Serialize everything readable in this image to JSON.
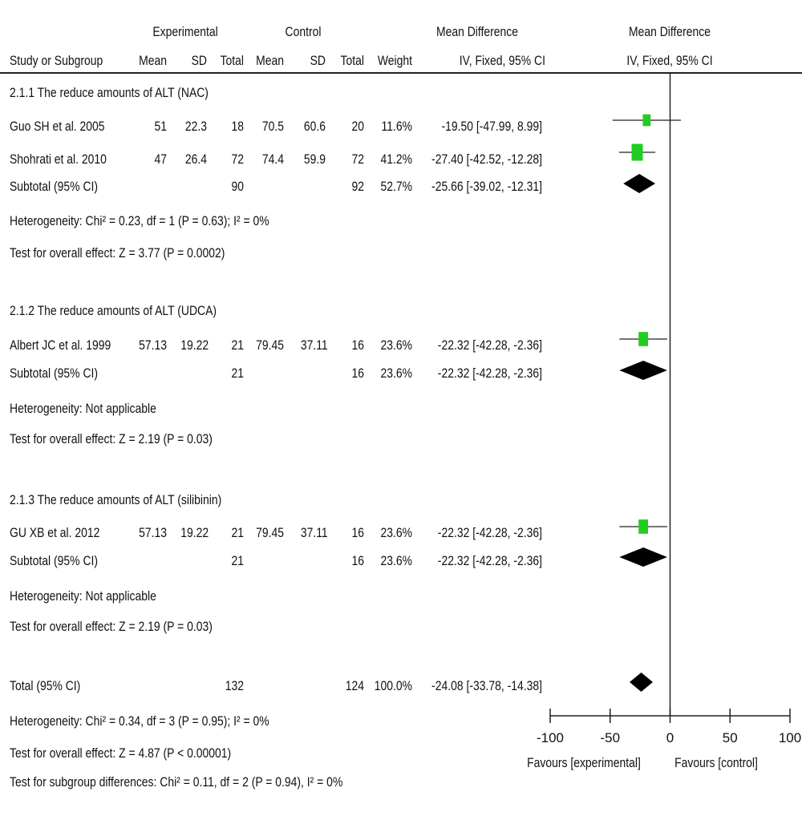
{
  "header": {
    "group_experimental": "Experimental",
    "group_control": "Control",
    "group_md": "Mean Difference",
    "group_md_plot": "Mean Difference",
    "col_study": "Study or Subgroup",
    "col_exp_mean": "Mean",
    "col_exp_sd": "SD",
    "col_exp_total": "Total",
    "col_ctl_mean": "Mean",
    "col_ctl_sd": "SD",
    "col_ctl_total": "Total",
    "col_weight": "Weight",
    "col_md": "IV, Fixed, 95% CI",
    "col_md_plot": "IV, Fixed, 95% CI"
  },
  "groups": [
    {
      "title": "2.1.1 The reduce amounts of ALT (NAC)",
      "studies": [
        {
          "name": "Guo SH et al. 2005",
          "e_mean": "51",
          "e_sd": "22.3",
          "e_total": "18",
          "c_mean": "70.5",
          "c_sd": "60.6",
          "c_total": "20",
          "weight": "11.6%",
          "md": "-19.50 [-47.99, 8.99]"
        },
        {
          "name": "Shohrati et al. 2010",
          "e_mean": "47",
          "e_sd": "26.4",
          "e_total": "72",
          "c_mean": "74.4",
          "c_sd": "59.9",
          "c_total": "72",
          "weight": "41.2%",
          "md": "-27.40 [-42.52, -12.28]"
        }
      ],
      "subtotal": {
        "label": "Subtotal (95% CI)",
        "e_total": "90",
        "c_total": "92",
        "weight": "52.7%",
        "md": "-25.66 [-39.02, -12.31]"
      },
      "heterogeneity": "Heterogeneity: Chi² = 0.23, df = 1 (P = 0.63); I² = 0%",
      "overall": "Test for overall effect: Z = 3.77 (P = 0.0002)"
    },
    {
      "title": "2.1.2 The reduce amounts of ALT (UDCA)",
      "studies": [
        {
          "name": "Albert JC et al. 1999",
          "e_mean": "57.13",
          "e_sd": "19.22",
          "e_total": "21",
          "c_mean": "79.45",
          "c_sd": "37.11",
          "c_total": "16",
          "weight": "23.6%",
          "md": "-22.32 [-42.28, -2.36]"
        }
      ],
      "subtotal": {
        "label": "Subtotal (95% CI)",
        "e_total": "21",
        "c_total": "16",
        "weight": "23.6%",
        "md": "-22.32 [-42.28, -2.36]"
      },
      "heterogeneity": "Heterogeneity: Not applicable",
      "overall": "Test for overall effect: Z = 2.19 (P = 0.03)"
    },
    {
      "title": "2.1.3 The reduce amounts of ALT (silibinin)",
      "studies": [
        {
          "name": "GU XB et al. 2012",
          "e_mean": "57.13",
          "e_sd": "19.22",
          "e_total": "21",
          "c_mean": "79.45",
          "c_sd": "37.11",
          "c_total": "16",
          "weight": "23.6%",
          "md": "-22.32 [-42.28, -2.36]"
        }
      ],
      "subtotal": {
        "label": "Subtotal (95% CI)",
        "e_total": "21",
        "c_total": "16",
        "weight": "23.6%",
        "md": "-22.32 [-42.28, -2.36]"
      },
      "heterogeneity": "Heterogeneity: Not applicable",
      "overall": "Test for overall effect: Z = 2.19 (P = 0.03)"
    }
  ],
  "total": {
    "label": "Total (95% CI)",
    "e_total": "132",
    "c_total": "124",
    "weight": "100.0%",
    "md": "-24.08 [-33.78, -14.38]",
    "heterogeneity": "Heterogeneity: Chi² = 0.34, df = 3 (P = 0.95); I² = 0%",
    "overall": "Test for overall effect: Z = 4.87 (P < 0.00001)",
    "subgroup": "Test for subgroup differences: Chi² = 0.11, df = 2 (P = 0.94), I² = 0%"
  },
  "axis": {
    "favours_left": "Favours [experimental]",
    "favours_right": "Favours [control]"
  },
  "colors": {
    "study_marker": "#22cc22",
    "summary_diamond": "#000000",
    "line": "#222222"
  },
  "chart_data": {
    "type": "forest",
    "xlim": [
      -100,
      100
    ],
    "xticks": [
      -100,
      -50,
      0,
      50,
      100
    ],
    "null_line": 0,
    "studies": [
      {
        "name": "Guo SH et al. 2005",
        "estimate": -19.5,
        "lower": -47.99,
        "upper": 8.99,
        "weight": 11.6
      },
      {
        "name": "Shohrati et al. 2010",
        "estimate": -27.4,
        "lower": -42.52,
        "upper": -12.28,
        "weight": 41.2
      },
      {
        "name": "Albert JC et al. 1999",
        "estimate": -22.32,
        "lower": -42.28,
        "upper": -2.36,
        "weight": 23.6
      },
      {
        "name": "GU XB et al. 2012",
        "estimate": -22.32,
        "lower": -42.28,
        "upper": -2.36,
        "weight": 23.6
      }
    ],
    "summaries": [
      {
        "name": "Subtotal 2.1.1",
        "estimate": -25.66,
        "lower": -39.02,
        "upper": -12.31
      },
      {
        "name": "Subtotal 2.1.2",
        "estimate": -22.32,
        "lower": -42.28,
        "upper": -2.36
      },
      {
        "name": "Subtotal 2.1.3",
        "estimate": -22.32,
        "lower": -42.28,
        "upper": -2.36
      },
      {
        "name": "Total",
        "estimate": -24.08,
        "lower": -33.78,
        "upper": -14.38
      }
    ]
  }
}
